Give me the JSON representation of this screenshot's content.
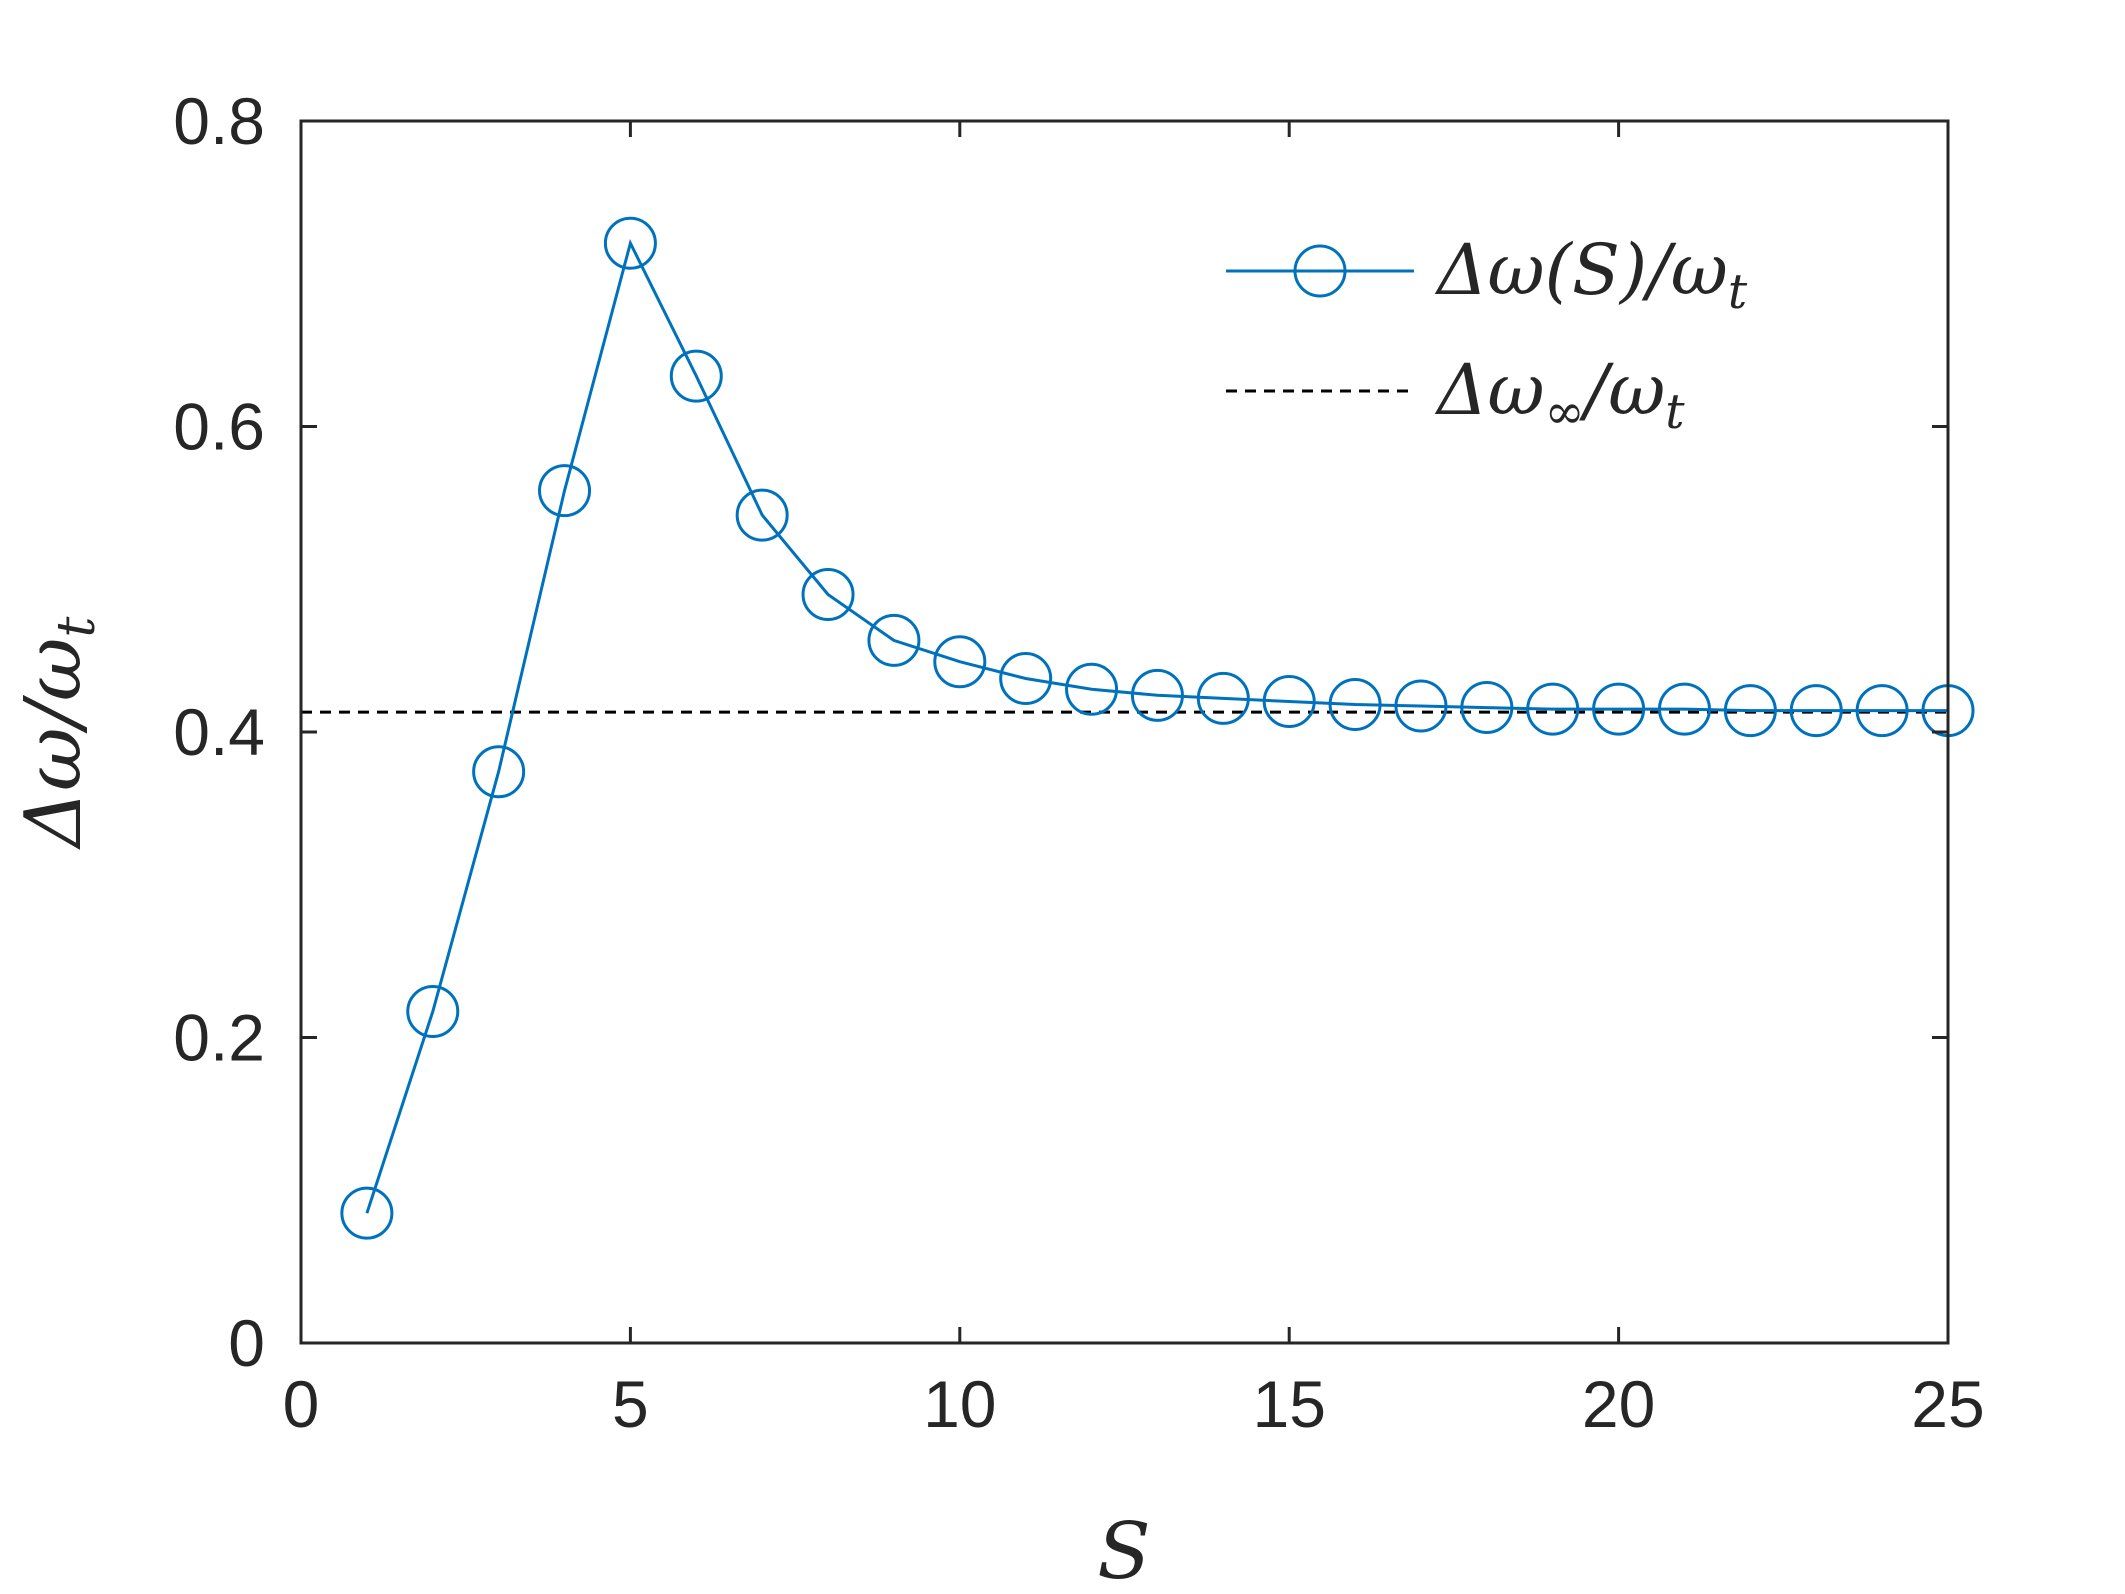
{
  "chart_data": {
    "type": "line",
    "xlabel": "S",
    "ylabel": "Δω/ω",
    "ylabel_sub": "t",
    "xlim": [
      0,
      25
    ],
    "ylim": [
      0,
      0.8
    ],
    "x_ticks": [
      0,
      5,
      10,
      15,
      20,
      25
    ],
    "y_ticks": [
      0,
      0.2,
      0.4,
      0.6,
      0.8
    ],
    "x_tick_labels": [
      "0",
      "5",
      "10",
      "15",
      "20",
      "25"
    ],
    "y_tick_labels": [
      "0",
      "0.2",
      "0.4",
      "0.6",
      "0.8"
    ],
    "grid": false,
    "legend_position": "top-right",
    "series": [
      {
        "name": "Δω(S)/ω",
        "name_sub": "t",
        "style": "solid-line-circle-markers",
        "color": "#0072BD",
        "x": [
          1,
          2,
          3,
          4,
          5,
          6,
          7,
          8,
          9,
          10,
          11,
          12,
          13,
          14,
          15,
          16,
          17,
          18,
          19,
          20,
          21,
          22,
          23,
          24,
          25
        ],
        "y": [
          0.085,
          0.217,
          0.374,
          0.558,
          0.72,
          0.633,
          0.542,
          0.49,
          0.46,
          0.446,
          0.435,
          0.428,
          0.424,
          0.422,
          0.42,
          0.418,
          0.417,
          0.416,
          0.415,
          0.415,
          0.415,
          0.414,
          0.414,
          0.414,
          0.414
        ]
      },
      {
        "name": "Δω",
        "name_sub": "∞",
        "name_suffix": "/ω",
        "name_suffix_sub": "t",
        "style": "dashed-line",
        "color": "#000000",
        "y_constant": 0.413
      }
    ]
  }
}
